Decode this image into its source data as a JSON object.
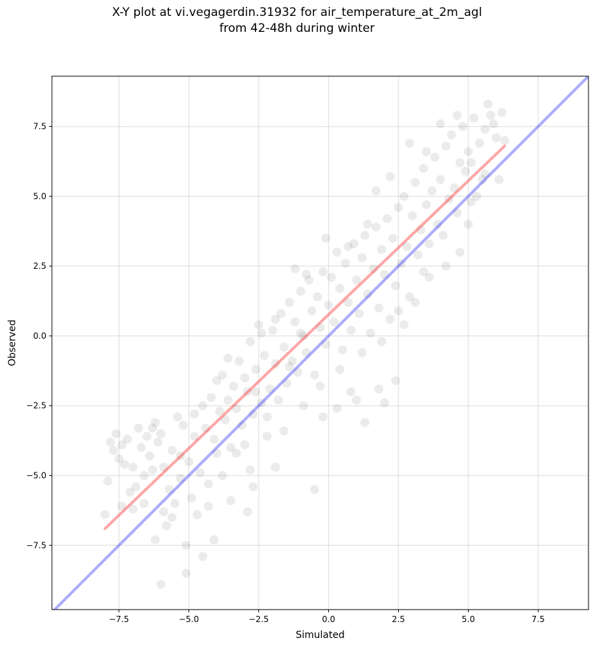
{
  "chart_data": {
    "type": "scatter",
    "title_line1": "X-Y plot at vi.vegagerdin.31932 for air_temperature_at_2m_agl",
    "title_line2": "from 42-48h during winter",
    "xlabel": "Simulated",
    "ylabel": "Observed",
    "xlim": [
      -9.9,
      9.3
    ],
    "ylim": [
      -9.8,
      9.3
    ],
    "xticks": [
      -7.5,
      -5.0,
      -2.5,
      0.0,
      2.5,
      5.0,
      7.5
    ],
    "yticks": [
      -7.5,
      -5.0,
      -2.5,
      0.0,
      2.5,
      5.0,
      7.5
    ],
    "xtick_labels": [
      "−7.5",
      "−5.0",
      "−2.5",
      "0.0",
      "2.5",
      "5.0",
      "7.5"
    ],
    "ytick_labels": [
      "−7.5",
      "−5.0",
      "−2.5",
      "0.0",
      "2.5",
      "5.0",
      "7.5"
    ],
    "grid": true,
    "point_color": "#000000",
    "point_alpha": 0.08,
    "identity_line": {
      "color": "#0000ff",
      "alpha": 0.33,
      "x": [
        -9.9,
        9.3
      ],
      "y": [
        -9.9,
        9.3
      ]
    },
    "fit_line": {
      "color": "#ff0000",
      "alpha": 0.35,
      "x": [
        -8.0,
        6.3
      ],
      "y": [
        -6.9,
        6.8
      ]
    },
    "points": [
      [
        -8.0,
        -6.4
      ],
      [
        -7.9,
        -5.2
      ],
      [
        -7.8,
        -3.8
      ],
      [
        -7.7,
        -4.1
      ],
      [
        -7.6,
        -3.5
      ],
      [
        -7.5,
        -4.4
      ],
      [
        -7.4,
        -3.9
      ],
      [
        -7.3,
        -4.6
      ],
      [
        -7.2,
        -3.7
      ],
      [
        -7.1,
        -5.6
      ],
      [
        -7.0,
        -6.2
      ],
      [
        -6.9,
        -5.4
      ],
      [
        -6.8,
        -3.3
      ],
      [
        -6.7,
        -4.0
      ],
      [
        -6.6,
        -5.0
      ],
      [
        -6.5,
        -3.6
      ],
      [
        -6.4,
        -4.3
      ],
      [
        -6.3,
        -4.8
      ],
      [
        -6.2,
        -3.1
      ],
      [
        -6.1,
        -3.8
      ],
      [
        -6.0,
        -3.5
      ],
      [
        -5.9,
        -4.7
      ],
      [
        -5.8,
        -6.8
      ],
      [
        -5.7,
        -5.5
      ],
      [
        -5.6,
        -4.1
      ],
      [
        -5.5,
        -6.0
      ],
      [
        -5.4,
        -2.9
      ],
      [
        -5.3,
        -5.1
      ],
      [
        -5.2,
        -3.2
      ],
      [
        -5.1,
        -7.5
      ],
      [
        -5.0,
        -4.5
      ],
      [
        -4.9,
        -5.8
      ],
      [
        -4.8,
        -3.6
      ],
      [
        -4.7,
        -6.4
      ],
      [
        -4.6,
        -4.9
      ],
      [
        -4.5,
        -2.5
      ],
      [
        -4.4,
        -3.3
      ],
      [
        -4.3,
        -5.3
      ],
      [
        -4.2,
        -2.2
      ],
      [
        -4.1,
        -3.7
      ],
      [
        -4.0,
        -4.2
      ],
      [
        -3.9,
        -2.7
      ],
      [
        -3.8,
        -1.4
      ],
      [
        -3.7,
        -3.0
      ],
      [
        -3.6,
        -2.3
      ],
      [
        -3.5,
        -4.0
      ],
      [
        -3.4,
        -1.8
      ],
      [
        -3.3,
        -2.6
      ],
      [
        -3.2,
        -0.9
      ],
      [
        -3.1,
        -3.2
      ],
      [
        -3.0,
        -1.5
      ],
      [
        -2.9,
        -2.0
      ],
      [
        -2.8,
        -0.2
      ],
      [
        -2.7,
        -2.8
      ],
      [
        -2.6,
        -1.2
      ],
      [
        -2.5,
        0.4
      ],
      [
        -2.4,
        -2.4
      ],
      [
        -2.3,
        -0.7
      ],
      [
        -2.2,
        -3.6
      ],
      [
        -2.1,
        -1.9
      ],
      [
        -2.0,
        0.2
      ],
      [
        -1.9,
        -1.0
      ],
      [
        -1.8,
        -2.3
      ],
      [
        -1.7,
        0.8
      ],
      [
        -1.6,
        -0.4
      ],
      [
        -1.5,
        -1.7
      ],
      [
        -1.4,
        1.2
      ],
      [
        -1.3,
        -0.9
      ],
      [
        -1.2,
        0.5
      ],
      [
        -1.1,
        -1.3
      ],
      [
        -1.0,
        1.6
      ],
      [
        -0.9,
        0.0
      ],
      [
        -0.8,
        -0.6
      ],
      [
        -0.7,
        2.0
      ],
      [
        -0.6,
        0.9
      ],
      [
        -0.5,
        -1.4
      ],
      [
        -0.4,
        1.4
      ],
      [
        -0.3,
        0.3
      ],
      [
        -0.2,
        2.3
      ],
      [
        -0.1,
        -0.3
      ],
      [
        0.0,
        1.1
      ],
      [
        0.1,
        2.1
      ],
      [
        0.2,
        0.5
      ],
      [
        0.3,
        3.0
      ],
      [
        0.4,
        1.7
      ],
      [
        0.5,
        -0.5
      ],
      [
        0.6,
        2.6
      ],
      [
        0.7,
        1.2
      ],
      [
        0.8,
        0.2
      ],
      [
        0.9,
        3.3
      ],
      [
        1.0,
        2.0
      ],
      [
        1.1,
        0.8
      ],
      [
        1.2,
        2.8
      ],
      [
        1.3,
        3.6
      ],
      [
        1.4,
        1.5
      ],
      [
        1.5,
        0.1
      ],
      [
        1.6,
        2.4
      ],
      [
        1.7,
        3.9
      ],
      [
        1.8,
        1.0
      ],
      [
        1.9,
        3.1
      ],
      [
        2.0,
        2.2
      ],
      [
        2.1,
        4.2
      ],
      [
        2.2,
        0.6
      ],
      [
        2.3,
        3.5
      ],
      [
        2.4,
        1.8
      ],
      [
        2.5,
        4.6
      ],
      [
        2.6,
        2.6
      ],
      [
        2.7,
        5.0
      ],
      [
        2.8,
        3.2
      ],
      [
        2.9,
        1.4
      ],
      [
        3.0,
        4.3
      ],
      [
        3.1,
        5.5
      ],
      [
        3.2,
        2.9
      ],
      [
        3.3,
        3.8
      ],
      [
        3.4,
        6.0
      ],
      [
        3.5,
        4.7
      ],
      [
        3.6,
        3.3
      ],
      [
        3.7,
        5.2
      ],
      [
        3.8,
        6.4
      ],
      [
        3.9,
        4.0
      ],
      [
        4.0,
        5.6
      ],
      [
        4.1,
        3.6
      ],
      [
        4.2,
        6.8
      ],
      [
        4.3,
        4.9
      ],
      [
        4.4,
        7.2
      ],
      [
        4.5,
        5.3
      ],
      [
        4.6,
        4.4
      ],
      [
        4.7,
        6.2
      ],
      [
        4.8,
        7.5
      ],
      [
        4.9,
        5.9
      ],
      [
        5.0,
        6.6
      ],
      [
        5.1,
        4.8
      ],
      [
        5.2,
        7.8
      ],
      [
        5.4,
        6.9
      ],
      [
        5.6,
        7.4
      ],
      [
        5.8,
        7.9
      ],
      [
        6.0,
        7.1
      ],
      [
        6.2,
        8.0
      ],
      [
        5.7,
        8.3
      ],
      [
        5.9,
        7.6
      ],
      [
        -6.2,
        -7.3
      ],
      [
        -5.9,
        -6.3
      ],
      [
        -6.0,
        -8.9
      ],
      [
        -5.1,
        -8.5
      ],
      [
        -4.1,
        -7.3
      ],
      [
        -4.5,
        -7.9
      ],
      [
        -2.9,
        -6.3
      ],
      [
        -2.7,
        -5.4
      ],
      [
        -0.5,
        -5.5
      ],
      [
        -3.3,
        -4.2
      ],
      [
        -0.2,
        -2.9
      ],
      [
        0.3,
        -2.6
      ],
      [
        1.0,
        -2.3
      ],
      [
        1.8,
        -1.9
      ],
      [
        2.4,
        -1.6
      ],
      [
        2.0,
        -2.4
      ],
      [
        1.3,
        -3.1
      ],
      [
        0.8,
        -2.0
      ],
      [
        1.9,
        -0.2
      ],
      [
        2.7,
        0.4
      ],
      [
        3.1,
        1.2
      ],
      [
        3.6,
        2.1
      ],
      [
        4.2,
        2.5
      ],
      [
        4.7,
        3.0
      ],
      [
        5.0,
        4.0
      ],
      [
        5.3,
        5.0
      ],
      [
        5.5,
        5.6
      ],
      [
        -1.9,
        -4.7
      ],
      [
        -2.8,
        -4.8
      ],
      [
        -3.5,
        -5.9
      ],
      [
        -4.3,
        -6.1
      ],
      [
        -3.8,
        -5.0
      ],
      [
        -2.2,
        -2.9
      ],
      [
        -1.6,
        -3.4
      ],
      [
        -0.9,
        -2.5
      ],
      [
        -0.3,
        -1.8
      ],
      [
        0.4,
        -1.2
      ],
      [
        1.2,
        -0.6
      ],
      [
        2.5,
        0.9
      ],
      [
        3.4,
        2.3
      ],
      [
        -7.4,
        -6.1
      ],
      [
        -7.0,
        -4.7
      ],
      [
        -6.6,
        -6.0
      ],
      [
        -6.3,
        -3.3
      ],
      [
        -5.6,
        -6.5
      ],
      [
        -5.3,
        -4.3
      ],
      [
        -4.8,
        -2.8
      ],
      [
        -4.0,
        -1.6
      ],
      [
        -3.6,
        -0.8
      ],
      [
        -2.4,
        0.1
      ],
      [
        -1.9,
        0.6
      ],
      [
        -1.2,
        2.4
      ],
      [
        -0.8,
        2.2
      ],
      [
        -0.1,
        3.5
      ],
      [
        0.7,
        3.2
      ],
      [
        1.4,
        4.0
      ],
      [
        1.7,
        5.2
      ],
      [
        2.2,
        5.7
      ],
      [
        2.9,
        6.9
      ],
      [
        3.5,
        6.6
      ],
      [
        4.0,
        7.6
      ],
      [
        4.6,
        7.9
      ],
      [
        5.1,
        6.2
      ],
      [
        5.6,
        5.8
      ],
      [
        6.1,
        5.6
      ],
      [
        6.3,
        7.0
      ],
      [
        -3.0,
        -3.9
      ],
      [
        -2.6,
        -2.0
      ],
      [
        -1.4,
        -1.1
      ],
      [
        -1.0,
        0.1
      ]
    ]
  }
}
